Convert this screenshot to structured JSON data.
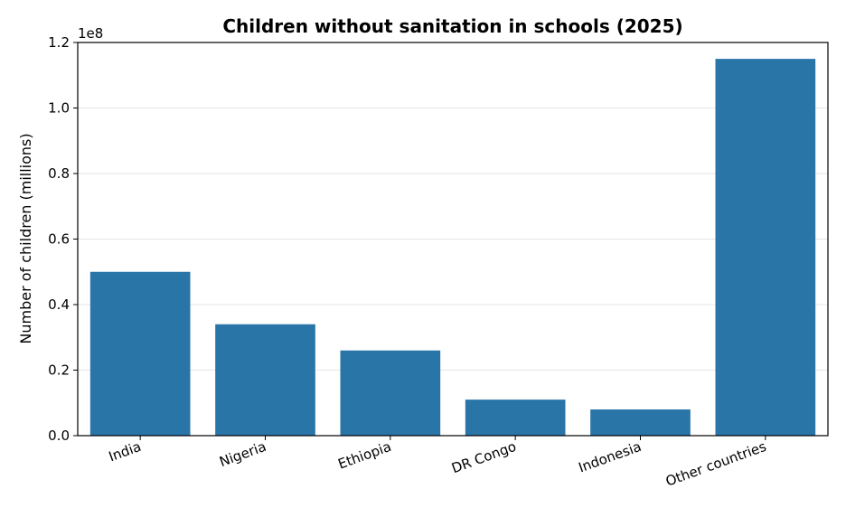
{
  "chart_data": {
    "type": "bar",
    "title": "Children without sanitation in schools (2025)",
    "xlabel": "",
    "ylabel": "Number of children (millions)",
    "y_offset_label": "1e8",
    "categories": [
      "India",
      "Nigeria",
      "Ethiopia",
      "DR Congo",
      "Indonesia",
      "Other countries"
    ],
    "values": [
      50000000,
      34000000,
      26000000,
      11000000,
      8000000,
      115000000
    ],
    "ylim": [
      0,
      120000000
    ],
    "yticks": [
      0,
      20000000,
      40000000,
      60000000,
      80000000,
      100000000,
      120000000
    ],
    "ytick_labels": [
      "0.0",
      "0.2",
      "0.4",
      "0.6",
      "0.8",
      "1.0",
      "1.2"
    ],
    "grid": "horizontal",
    "bar_color": "#2a75a8",
    "grid_color": "#e5e5e5"
  }
}
